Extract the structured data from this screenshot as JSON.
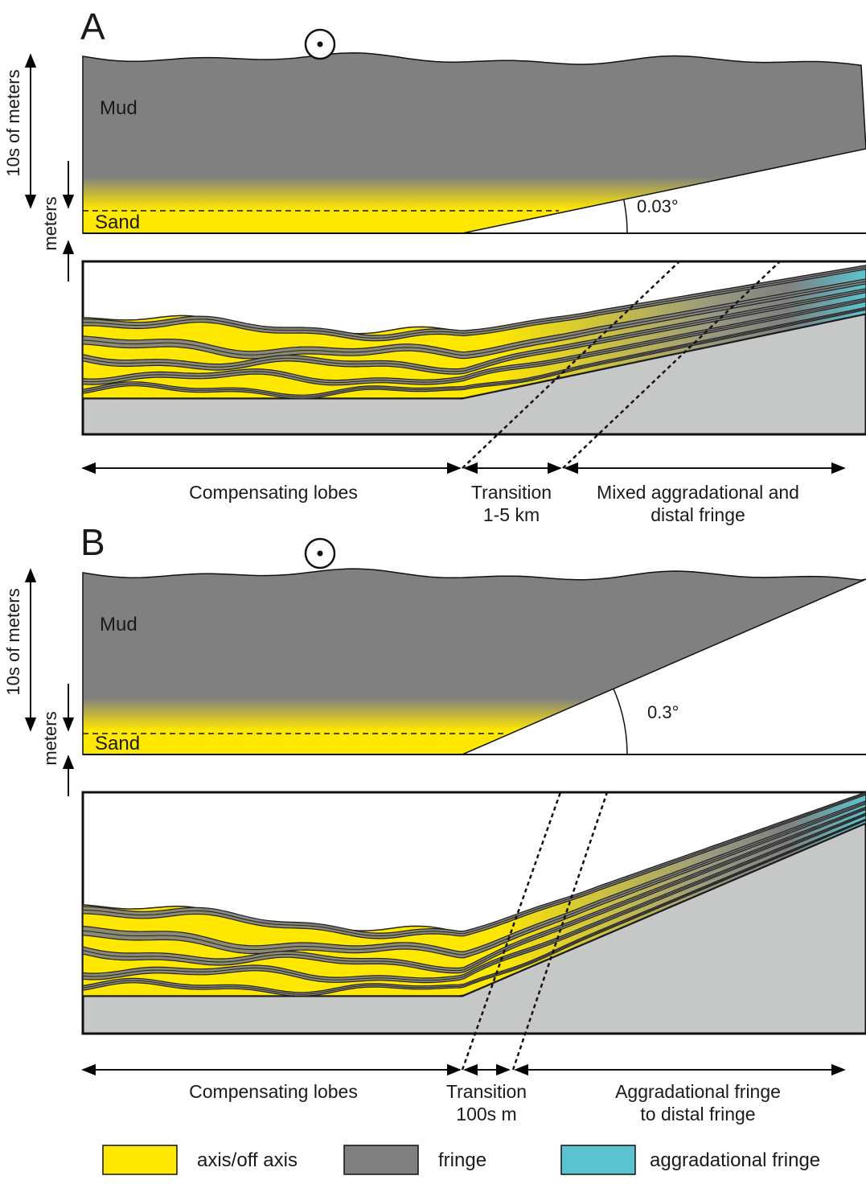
{
  "panels": [
    {
      "label": "A",
      "mud": "Mud",
      "sand": "Sand",
      "angle": "0.03°",
      "scale_large": "10s of meters",
      "scale_small": "meters",
      "zones": [
        {
          "lines": [
            "Compensating lobes"
          ]
        },
        {
          "lines": [
            "Transition",
            "1-5 km"
          ]
        },
        {
          "lines": [
            "Mixed aggradational and",
            "distal fringe"
          ]
        }
      ]
    },
    {
      "label": "B",
      "mud": "Mud",
      "sand": "Sand",
      "angle": "0.3°",
      "scale_large": "10s of meters",
      "scale_small": "meters",
      "zones": [
        {
          "lines": [
            "Compensating lobes"
          ]
        },
        {
          "lines": [
            "Transition",
            "100s m"
          ]
        },
        {
          "lines": [
            "Aggradational fringe",
            "to distal fringe"
          ]
        }
      ]
    }
  ],
  "legend": [
    {
      "label": "axis/off axis",
      "color": "#ffe800"
    },
    {
      "label": "fringe",
      "color": "#808080"
    },
    {
      "label": "aggradational fringe",
      "color": "#5bc3cf"
    }
  ]
}
